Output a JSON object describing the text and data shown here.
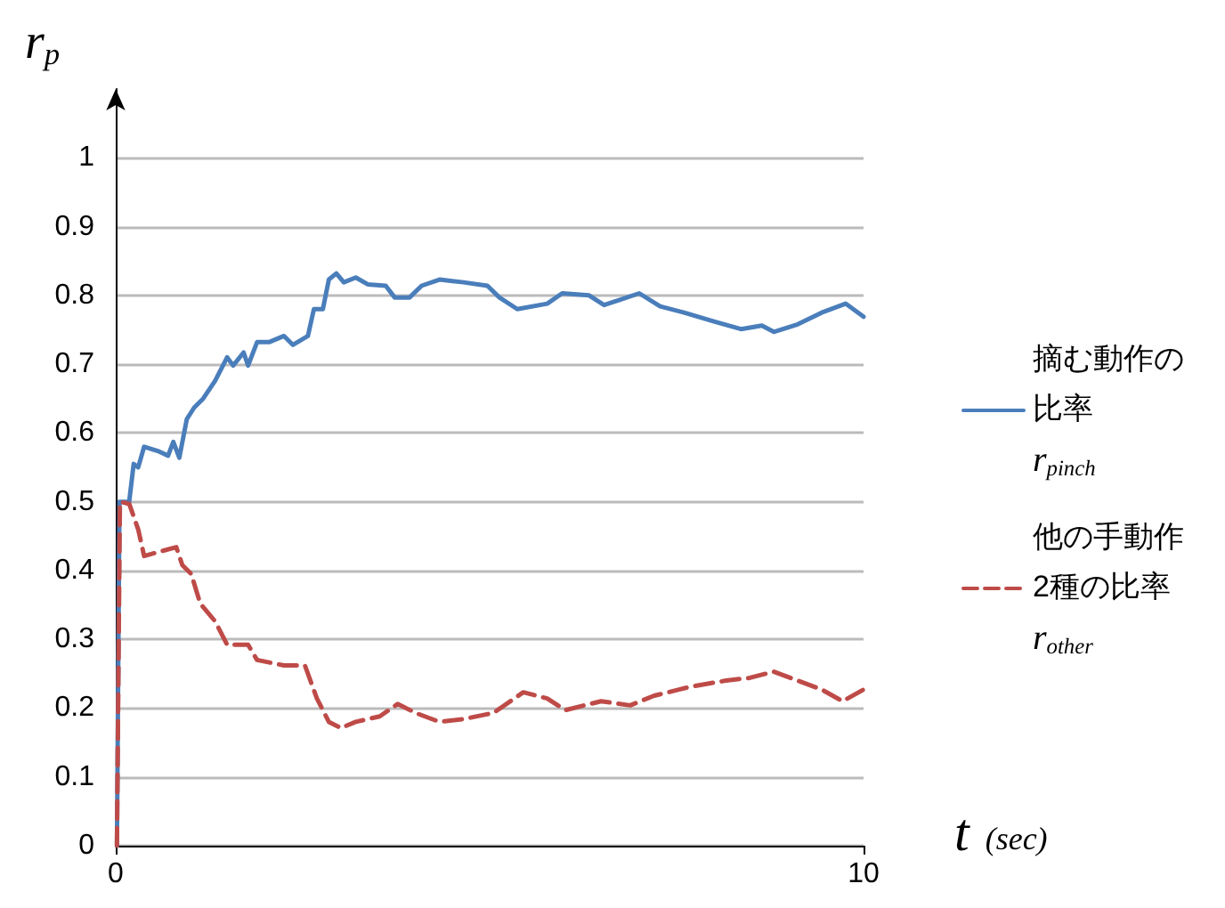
{
  "chart_data": {
    "type": "line",
    "xlabel": "t (sec)",
    "ylabel": "r$_{p}$",
    "xlim": [
      0,
      10
    ],
    "xticks": [
      0,
      10
    ],
    "ylim": [
      0,
      1.1
    ],
    "yticks": [
      0,
      0.1,
      0.2,
      0.3,
      0.4,
      0.5,
      0.6,
      0.7,
      0.8,
      0.9,
      1
    ],
    "grid": "y",
    "legend": "right",
    "marker": "none",
    "series": [
      {
        "name": "摘む動作の比率\nr$_{pinch}$",
        "color": "#4a7ebb",
        "line_style": "solid",
        "x": [
          0.016,
          0.05,
          0.18,
          0.24,
          0.3,
          0.38,
          0.58,
          0.7,
          0.77,
          0.85,
          0.95,
          1.05,
          1.17,
          1.33,
          1.49,
          1.57,
          1.71,
          1.77,
          1.89,
          2.05,
          2.25,
          2.37,
          2.57,
          2.65,
          2.77,
          2.85,
          2.95,
          3.05,
          3.21,
          3.37,
          3.61,
          3.73,
          3.93,
          4.09,
          4.33,
          4.65,
          4.97,
          5.13,
          5.37,
          5.77,
          5.97,
          6.33,
          6.53,
          6.73,
          7.0,
          7.28,
          7.6,
          8.0,
          8.36,
          8.64,
          8.8,
          9.12,
          9.44,
          9.76,
          10.0
        ],
        "values": [
          0,
          0.5,
          0.5,
          0.555,
          0.55,
          0.58,
          0.573,
          0.567,
          0.587,
          0.564,
          0.62,
          0.637,
          0.65,
          0.676,
          0.71,
          0.698,
          0.717,
          0.698,
          0.732,
          0.732,
          0.741,
          0.728,
          0.741,
          0.78,
          0.78,
          0.823,
          0.832,
          0.819,
          0.826,
          0.816,
          0.814,
          0.797,
          0.797,
          0.814,
          0.823,
          0.819,
          0.814,
          0.797,
          0.78,
          0.788,
          0.803,
          0.8,
          0.786,
          0.793,
          0.803,
          0.784,
          0.775,
          0.762,
          0.751,
          0.756,
          0.747,
          0.758,
          0.775,
          0.788,
          0.769
        ]
      },
      {
        "name": "他の手動作2種の比率\nr$_{other}$",
        "color": "#be4b48",
        "line_style": "dashed",
        "x": [
          0.016,
          0.056,
          0.18,
          0.3,
          0.38,
          0.54,
          0.81,
          0.89,
          1.01,
          1.13,
          1.33,
          1.49,
          1.77,
          1.89,
          2.25,
          2.53,
          2.69,
          2.85,
          3.01,
          3.21,
          3.53,
          3.77,
          4.01,
          4.33,
          4.65,
          5.05,
          5.45,
          5.77,
          6.01,
          6.49,
          6.88,
          7.2,
          7.68,
          8.16,
          8.48,
          8.8,
          9.12,
          9.44,
          9.72,
          10.0
        ],
        "values": [
          0,
          0.5,
          0.497,
          0.46,
          0.421,
          0.426,
          0.434,
          0.408,
          0.395,
          0.352,
          0.326,
          0.292,
          0.292,
          0.27,
          0.262,
          0.262,
          0.214,
          0.18,
          0.171,
          0.18,
          0.188,
          0.206,
          0.193,
          0.18,
          0.184,
          0.193,
          0.223,
          0.214,
          0.197,
          0.21,
          0.204,
          0.218,
          0.231,
          0.24,
          0.244,
          0.253,
          0.24,
          0.227,
          0.21,
          0.227
        ]
      }
    ]
  }
}
